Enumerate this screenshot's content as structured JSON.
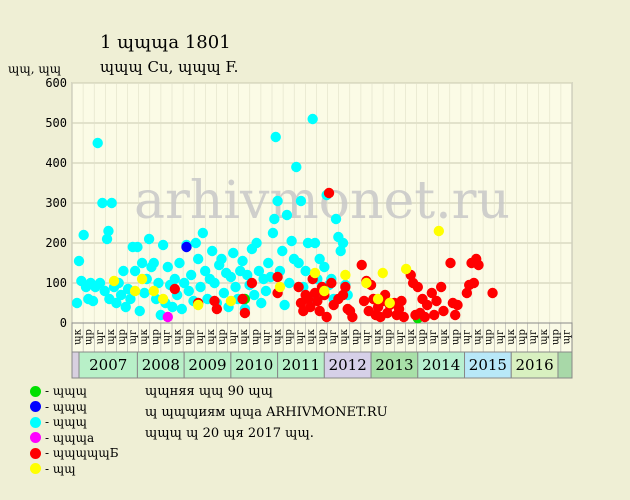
{
  "header": {
    "title_line1": "1 ɰɰɰa 1801",
    "title_line2": "ɰɰɰ Cu, ɰɰɰ F.",
    "y_unit": "ɰɰ, ɰɰ"
  },
  "legend": [
    {
      "label": "- ɰɰɰ",
      "color": "#00e000"
    },
    {
      "label": "- ɰɰɰ",
      "color": "#0000ff"
    },
    {
      "label": "- ɰɰɰ",
      "color": "#00ffff"
    },
    {
      "label": "- ɰɰɰa",
      "color": "#ff00ff"
    },
    {
      "label": "- ɰɰɰɰɰБ",
      "color": "#ff0000"
    },
    {
      "label": "- ɰɰ",
      "color": "#ffff00"
    }
  ],
  "notes": [
    "ɰɰняя ɰɰ 90 ɰɰ",
    "ɰ ɰɰɰиям ɰɰa ARHIVMONET.RU",
    "ɰɰɰ ɰ 20 ɰя 2017 ɰɰ."
  ],
  "watermark": "arhivmonet.ru",
  "chart_data": {
    "type": "scatter",
    "title": "1 ɰɰɰa 1801",
    "ylabel": "ɰɰ, ɰɰ",
    "ylim": [
      0,
      600
    ],
    "yticks": [
      0,
      100,
      200,
      300,
      400,
      500,
      600
    ],
    "grid": true,
    "x_start": 2006.6,
    "x_end": 2017.3,
    "quarter_labels": [
      "ɰк",
      "ɰр",
      "ɰг",
      "ɰк",
      "ɰр",
      "ɰг",
      "ɰк",
      "ɰр",
      "ɰг",
      "ɰк",
      "ɰр",
      "ɰг",
      "ɰк",
      "ɰр",
      "ɰг",
      "ɰк",
      "ɰр",
      "ɰг",
      "ɰк",
      "ɰр",
      "ɰг",
      "ɰк",
      "ɰр",
      "ɰг",
      "ɰк",
      "ɰр",
      "ɰг",
      "ɰк",
      "ɰр",
      "ɰг",
      "ɰк",
      "ɰр",
      "ɰг",
      "ɰк",
      "ɰр",
      "ɰг",
      "ɰк",
      "ɰр",
      "ɰг",
      "ɰк",
      "ɰр",
      "ɰг",
      "ɰк",
      "ɰр",
      "ɰг"
    ],
    "years": [
      {
        "label": "2007",
        "start": 2006.75,
        "end": 2008.0,
        "color": "#b8f0c8"
      },
      {
        "label": "2008",
        "start": 2008.0,
        "end": 2009.0,
        "color": "#b8f0c8"
      },
      {
        "label": "2009",
        "start": 2009.0,
        "end": 2010.0,
        "color": "#b8f0c8"
      },
      {
        "label": "2010",
        "start": 2010.0,
        "end": 2011.0,
        "color": "#b8f0c8"
      },
      {
        "label": "2011",
        "start": 2011.0,
        "end": 2012.0,
        "color": "#b8f0c8"
      },
      {
        "label": "2012",
        "start": 2012.0,
        "end": 2013.0,
        "color": "#d6d0e8"
      },
      {
        "label": "2013",
        "start": 2013.0,
        "end": 2014.0,
        "color": "#a8e0a8"
      },
      {
        "label": "2014",
        "start": 2014.0,
        "end": 2015.0,
        "color": "#b8f0d0"
      },
      {
        "label": "2015",
        "start": 2015.0,
        "end": 2016.0,
        "color": "#b8e8f8"
      },
      {
        "label": "2016",
        "start": 2016.0,
        "end": 2017.0,
        "color": "#d8f0c0"
      }
    ],
    "series": [
      {
        "color": "#00ffff",
        "points": [
          [
            2006.65,
            50
          ],
          [
            2006.75,
            155
          ],
          [
            2006.8,
            105
          ],
          [
            2006.85,
            220
          ],
          [
            2006.9,
            90
          ],
          [
            2006.95,
            60
          ],
          [
            2007.0,
            100
          ],
          [
            2007.05,
            55
          ],
          [
            2007.1,
            90
          ],
          [
            2007.15,
            450
          ],
          [
            2007.2,
            100
          ],
          [
            2007.25,
            300
          ],
          [
            2007.3,
            80
          ],
          [
            2007.35,
            210
          ],
          [
            2007.38,
            230
          ],
          [
            2007.4,
            60
          ],
          [
            2007.45,
            300
          ],
          [
            2007.5,
            90
          ],
          [
            2007.55,
            50
          ],
          [
            2007.6,
            100
          ],
          [
            2007.65,
            70
          ],
          [
            2007.7,
            130
          ],
          [
            2007.75,
            40
          ],
          [
            2007.8,
            85
          ],
          [
            2007.85,
            60
          ],
          [
            2007.9,
            190
          ],
          [
            2007.95,
            130
          ],
          [
            2008.0,
            190
          ],
          [
            2008.05,
            30
          ],
          [
            2008.1,
            150
          ],
          [
            2008.15,
            75
          ],
          [
            2008.2,
            110
          ],
          [
            2008.25,
            210
          ],
          [
            2008.3,
            140
          ],
          [
            2008.35,
            150
          ],
          [
            2008.4,
            60
          ],
          [
            2008.45,
            100
          ],
          [
            2008.5,
            20
          ],
          [
            2008.55,
            195
          ],
          [
            2008.6,
            50
          ],
          [
            2008.65,
            140
          ],
          [
            2008.7,
            95
          ],
          [
            2008.75,
            40
          ],
          [
            2008.8,
            110
          ],
          [
            2008.85,
            70
          ],
          [
            2008.9,
            150
          ],
          [
            2008.95,
            35
          ],
          [
            2009.0,
            100
          ],
          [
            2009.05,
            195
          ],
          [
            2009.1,
            80
          ],
          [
            2009.15,
            120
          ],
          [
            2009.2,
            55
          ],
          [
            2009.25,
            200
          ],
          [
            2009.3,
            160
          ],
          [
            2009.35,
            90
          ],
          [
            2009.4,
            225
          ],
          [
            2009.45,
            130
          ],
          [
            2009.5,
            60
          ],
          [
            2009.55,
            110
          ],
          [
            2009.6,
            180
          ],
          [
            2009.65,
            100
          ],
          [
            2009.7,
            50
          ],
          [
            2009.75,
            145
          ],
          [
            2009.8,
            160
          ],
          [
            2009.85,
            75
          ],
          [
            2009.9,
            125
          ],
          [
            2009.95,
            40
          ],
          [
            2010.0,
            115
          ],
          [
            2010.05,
            175
          ],
          [
            2010.1,
            90
          ],
          [
            2010.15,
            60
          ],
          [
            2010.2,
            130
          ],
          [
            2010.25,
            155
          ],
          [
            2010.3,
            35
          ],
          [
            2010.35,
            120
          ],
          [
            2010.4,
            95
          ],
          [
            2010.45,
            185
          ],
          [
            2010.5,
            70
          ],
          [
            2010.55,
            200
          ],
          [
            2010.6,
            130
          ],
          [
            2010.65,
            50
          ],
          [
            2010.7,
            110
          ],
          [
            2010.75,
            80
          ],
          [
            2010.8,
            150
          ],
          [
            2010.85,
            115
          ],
          [
            2010.9,
            225
          ],
          [
            2010.93,
            260
          ],
          [
            2010.96,
            465
          ],
          [
            2011.0,
            305
          ],
          [
            2011.05,
            130
          ],
          [
            2011.1,
            180
          ],
          [
            2011.15,
            45
          ],
          [
            2011.2,
            270
          ],
          [
            2011.25,
            100
          ],
          [
            2011.3,
            205
          ],
          [
            2011.35,
            160
          ],
          [
            2011.4,
            390
          ],
          [
            2011.45,
            150
          ],
          [
            2011.5,
            305
          ],
          [
            2011.55,
            90
          ],
          [
            2011.6,
            130
          ],
          [
            2011.65,
            200
          ],
          [
            2011.7,
            60
          ],
          [
            2011.75,
            510
          ],
          [
            2011.8,
            200
          ],
          [
            2011.85,
            110
          ],
          [
            2011.9,
            160
          ],
          [
            2011.95,
            70
          ],
          [
            2012.0,
            140
          ],
          [
            2012.05,
            320
          ],
          [
            2012.1,
            95
          ],
          [
            2012.15,
            110
          ],
          [
            2012.2,
            60
          ],
          [
            2012.25,
            260
          ],
          [
            2012.3,
            215
          ],
          [
            2012.35,
            180
          ],
          [
            2012.4,
            200
          ],
          [
            2012.45,
            95
          ],
          [
            2012.5,
            70
          ]
        ]
      },
      {
        "color": "#0000ff",
        "points": [
          [
            2009.05,
            190
          ]
        ]
      },
      {
        "color": "#00e000",
        "points": [
          [
            2010.3,
            60
          ],
          [
            2014.0,
            12
          ]
        ]
      },
      {
        "color": "#ff00ff",
        "points": [
          [
            2008.65,
            15
          ]
        ]
      },
      {
        "color": "#ff0000",
        "points": [
          [
            2008.8,
            85
          ],
          [
            2009.3,
            50
          ],
          [
            2009.65,
            55
          ],
          [
            2009.7,
            35
          ],
          [
            2010.25,
            60
          ],
          [
            2010.3,
            25
          ],
          [
            2010.45,
            100
          ],
          [
            2011.0,
            75
          ],
          [
            2011.0,
            115
          ],
          [
            2011.45,
            90
          ],
          [
            2011.5,
            50
          ],
          [
            2011.55,
            30
          ],
          [
            2011.6,
            70
          ],
          [
            2011.65,
            60
          ],
          [
            2011.7,
            40
          ],
          [
            2011.75,
            110
          ],
          [
            2011.8,
            75
          ],
          [
            2011.85,
            55
          ],
          [
            2011.9,
            30
          ],
          [
            2011.95,
            90
          ],
          [
            2012.0,
            70
          ],
          [
            2012.05,
            15
          ],
          [
            2012.1,
            325
          ],
          [
            2012.15,
            100
          ],
          [
            2012.2,
            45
          ],
          [
            2012.3,
            60
          ],
          [
            2012.4,
            70
          ],
          [
            2012.45,
            90
          ],
          [
            2012.5,
            35
          ],
          [
            2012.55,
            30
          ],
          [
            2012.6,
            15
          ],
          [
            2012.8,
            145
          ],
          [
            2012.85,
            55
          ],
          [
            2012.9,
            105
          ],
          [
            2012.95,
            30
          ],
          [
            2013.0,
            95
          ],
          [
            2013.05,
            60
          ],
          [
            2013.1,
            20
          ],
          [
            2013.15,
            40
          ],
          [
            2013.2,
            15
          ],
          [
            2013.25,
            55
          ],
          [
            2013.3,
            70
          ],
          [
            2013.35,
            25
          ],
          [
            2013.4,
            45
          ],
          [
            2013.5,
            50
          ],
          [
            2013.55,
            20
          ],
          [
            2013.6,
            35
          ],
          [
            2013.65,
            55
          ],
          [
            2013.7,
            15
          ],
          [
            2013.85,
            120
          ],
          [
            2013.9,
            100
          ],
          [
            2013.95,
            20
          ],
          [
            2014.0,
            90
          ],
          [
            2014.05,
            25
          ],
          [
            2014.1,
            60
          ],
          [
            2014.15,
            15
          ],
          [
            2014.2,
            45
          ],
          [
            2014.3,
            75
          ],
          [
            2014.35,
            20
          ],
          [
            2014.4,
            55
          ],
          [
            2014.5,
            90
          ],
          [
            2014.55,
            30
          ],
          [
            2014.7,
            150
          ],
          [
            2014.75,
            50
          ],
          [
            2014.8,
            20
          ],
          [
            2014.85,
            45
          ],
          [
            2015.05,
            75
          ],
          [
            2015.1,
            95
          ],
          [
            2015.15,
            150
          ],
          [
            2015.2,
            100
          ],
          [
            2015.25,
            160
          ],
          [
            2015.3,
            145
          ],
          [
            2015.6,
            75
          ]
        ]
      },
      {
        "color": "#ffff00",
        "points": [
          [
            2007.5,
            105
          ],
          [
            2007.95,
            80
          ],
          [
            2008.1,
            110
          ],
          [
            2008.35,
            80
          ],
          [
            2008.55,
            60
          ],
          [
            2009.3,
            45
          ],
          [
            2010.0,
            55
          ],
          [
            2011.05,
            90
          ],
          [
            2011.8,
            125
          ],
          [
            2012.0,
            80
          ],
          [
            2012.45,
            120
          ],
          [
            2012.9,
            100
          ],
          [
            2013.15,
            60
          ],
          [
            2013.25,
            125
          ],
          [
            2013.4,
            50
          ],
          [
            2013.75,
            135
          ],
          [
            2014.45,
            230
          ]
        ]
      }
    ]
  }
}
